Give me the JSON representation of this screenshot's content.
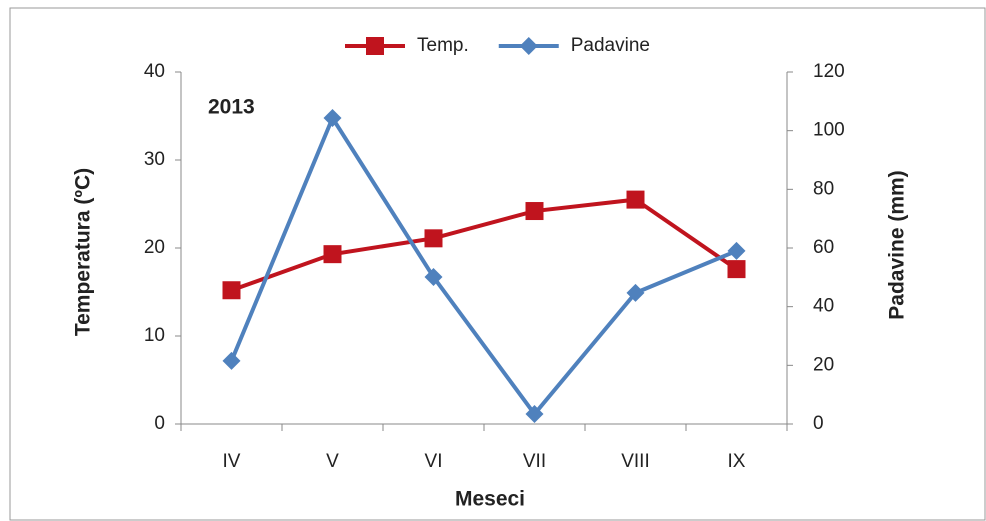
{
  "chart_data": {
    "type": "line",
    "annotation": "2013",
    "x_label": "Meseci",
    "y_label": "Temperatura (ºC)",
    "y2_label": "Padavine (mm)",
    "categories": [
      "IV",
      "V",
      "VI",
      "VII",
      "VIII",
      "IX"
    ],
    "series": [
      {
        "name": "Temp.",
        "color": "#c0141e",
        "marker": "square",
        "values": [
          15.2,
          19.3,
          21.1,
          24.2,
          25.5,
          17.6
        ]
      },
      {
        "name": "Padavine",
        "color": "#4f81bd",
        "marker": "diamond",
        "axis": "y2",
        "values": [
          21.5,
          104.3,
          50.1,
          3.4,
          44.7,
          59
        ]
      }
    ],
    "ylim": [
      0,
      40
    ],
    "yticks": [
      0,
      10,
      20,
      30,
      40
    ],
    "y2lim": [
      0,
      120
    ],
    "y2ticks": [
      0,
      20,
      40,
      60,
      80,
      100,
      120
    ],
    "legend": "top"
  }
}
